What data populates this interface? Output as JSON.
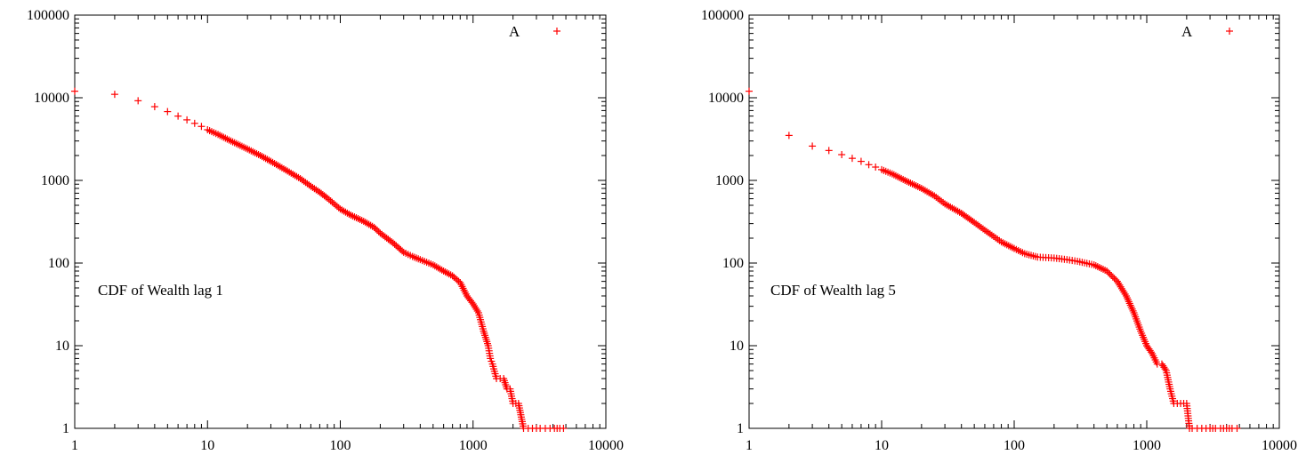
{
  "chart_data": [
    {
      "type": "scatter",
      "title": "",
      "annotation": "CDF of Wealth lag 1",
      "xlabel": "",
      "ylabel": "",
      "xscale": "log",
      "yscale": "log",
      "xlim": [
        1,
        10000
      ],
      "ylim": [
        1,
        100000
      ],
      "xticks": [
        "1",
        "10",
        "100",
        "1000",
        "10000"
      ],
      "yticks": [
        "1",
        "10",
        "100",
        "1000",
        "10000",
        "100000"
      ],
      "legend": {
        "position": "top-right",
        "entries": [
          "A"
        ]
      },
      "color": "#ff0000",
      "marker": "plus",
      "series": [
        {
          "name": "A",
          "x": [
            1,
            2,
            3,
            4,
            5,
            6,
            7,
            8,
            9,
            10,
            12,
            15,
            20,
            25,
            30,
            40,
            50,
            60,
            70,
            80,
            100,
            120,
            150,
            180,
            200,
            250,
            300,
            350,
            400,
            500,
            600,
            700,
            800,
            900,
            1000,
            1100,
            1200,
            1300,
            1350,
            1400,
            1500,
            1600,
            1700,
            1800,
            1900,
            2000,
            2100,
            2200,
            2400,
            2600,
            2800,
            3000,
            3200,
            3500,
            3800,
            4100,
            4500,
            4800
          ],
          "y": [
            12000,
            11000,
            9200,
            7800,
            6800,
            6000,
            5400,
            4900,
            4500,
            4100,
            3600,
            3000,
            2400,
            2000,
            1700,
            1300,
            1050,
            850,
            720,
            610,
            450,
            380,
            320,
            270,
            230,
            175,
            135,
            120,
            110,
            95,
            80,
            70,
            58,
            40,
            32,
            25,
            15,
            10,
            7,
            6,
            4,
            4,
            4,
            3,
            3,
            2,
            2,
            2,
            1,
            1,
            1,
            1,
            1,
            1,
            1,
            1,
            1,
            1
          ]
        }
      ]
    },
    {
      "type": "scatter",
      "title": "",
      "annotation": "CDF of Wealth lag 5",
      "xlabel": "",
      "ylabel": "",
      "xscale": "log",
      "yscale": "log",
      "xlim": [
        1,
        10000
      ],
      "ylim": [
        1,
        100000
      ],
      "xticks": [
        "1",
        "10",
        "100",
        "1000",
        "10000"
      ],
      "yticks": [
        "1",
        "10",
        "100",
        "1000",
        "10000",
        "100000"
      ],
      "legend": {
        "position": "top-right",
        "entries": [
          "A"
        ]
      },
      "color": "#ff0000",
      "marker": "plus",
      "series": [
        {
          "name": "A",
          "x": [
            1,
            2,
            3,
            4,
            5,
            6,
            7,
            8,
            9,
            10,
            12,
            15,
            20,
            25,
            30,
            40,
            50,
            60,
            70,
            80,
            100,
            120,
            150,
            200,
            250,
            300,
            400,
            500,
            600,
            700,
            800,
            900,
            1000,
            1100,
            1200,
            1300,
            1400,
            1500,
            1600,
            1700,
            1800,
            1900,
            2000,
            2100,
            2200,
            2400,
            2600,
            2800,
            3000,
            3300,
            3600,
            4000,
            4400,
            4800
          ],
          "y": [
            12000,
            3500,
            2600,
            2300,
            2050,
            1850,
            1700,
            1550,
            1450,
            1350,
            1200,
            1000,
            800,
            650,
            520,
            400,
            310,
            250,
            210,
            180,
            150,
            130,
            118,
            115,
            110,
            105,
            95,
            80,
            60,
            40,
            25,
            15,
            10,
            8,
            6,
            6,
            5,
            3,
            2,
            2,
            2,
            2,
            2,
            1,
            1,
            1,
            1,
            1,
            1,
            1,
            1,
            1,
            1,
            1
          ]
        }
      ]
    }
  ]
}
